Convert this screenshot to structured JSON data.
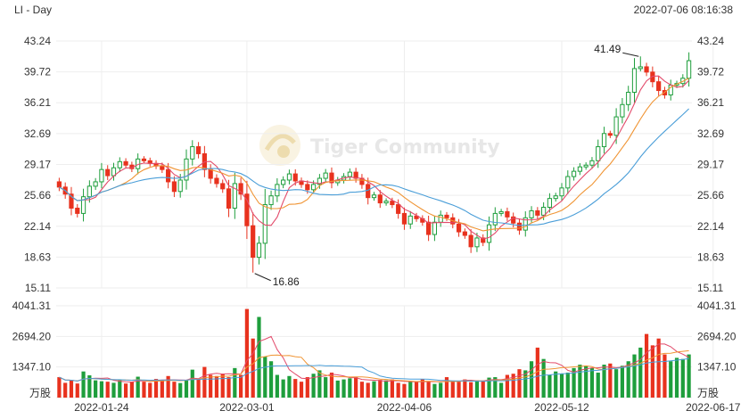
{
  "header": {
    "symbol_label": "LI - Day",
    "timestamp": "2022-07-06 08:16:38"
  },
  "watermark": {
    "text": "Tiger Community"
  },
  "colors": {
    "up": "#1e9e3c",
    "down": "#e8321e",
    "ma_short": "#e24a6a",
    "ma_mid": "#f09433",
    "ma_long": "#4a9ed8",
    "grid": "#eeeeee"
  },
  "chart_data": [
    {
      "type": "candlestick",
      "panel": "price",
      "ylim": [
        15.11,
        43.24
      ],
      "y_ticks": [
        "43.24",
        "39.72",
        "36.21",
        "32.69",
        "29.17",
        "25.66",
        "22.14",
        "18.63",
        "15.11"
      ],
      "y_tick_values": [
        43.24,
        39.72,
        36.21,
        32.69,
        29.17,
        25.66,
        22.14,
        18.63,
        15.11
      ],
      "x_labels": [
        {
          "label": "2022-01-24",
          "index": 7
        },
        {
          "label": "2022-03-01",
          "index": 31
        },
        {
          "label": "2022-04-06",
          "index": 57
        },
        {
          "label": "2022-05-12",
          "index": 83
        },
        {
          "label": "2022-06-17",
          "index": 108
        }
      ],
      "closes": [
        26.6,
        25.8,
        24.2,
        23.6,
        25.5,
        26.7,
        27.2,
        28.6,
        27.9,
        28.8,
        29.5,
        29.1,
        28.7,
        29.8,
        29.6,
        29.3,
        29.0,
        28.6,
        27.2,
        26.1,
        27.4,
        29.8,
        31.2,
        30.4,
        28.6,
        27.6,
        27.0,
        26.4,
        24.2,
        27.0,
        25.8,
        22.2,
        18.6,
        20.2,
        24.6,
        25.6,
        26.9,
        27.4,
        28.1,
        27.3,
        26.9,
        26.3,
        26.9,
        27.6,
        28.2,
        27.1,
        27.4,
        27.8,
        28.3,
        27.6,
        26.9,
        25.4,
        25.7,
        24.8,
        25.0,
        24.6,
        23.6,
        22.4,
        23.3,
        23.0,
        22.6,
        21.2,
        22.6,
        23.4,
        23.1,
        22.4,
        21.5,
        21.1,
        19.8,
        20.8,
        20.3,
        22.3,
        23.6,
        23.8,
        23.2,
        22.5,
        21.7,
        23.1,
        23.9,
        23.4,
        24.3,
        25.3,
        25.6,
        26.5,
        27.8,
        28.4,
        28.9,
        29.1,
        29.6,
        31.2,
        32.7,
        32.5,
        34.6,
        36.0,
        37.4,
        40.1,
        40.3,
        39.7,
        38.6,
        37.6,
        37.1,
        38.2,
        38.4,
        39.0,
        41.0
      ],
      "low_labels": [
        {
          "text": "16.86",
          "value": 16.86,
          "index": 32
        }
      ],
      "high_labels": [
        {
          "text": "41.49",
          "value": 41.49,
          "index": 96
        }
      ],
      "series": [
        {
          "name": "",
          "kind": "ma_short",
          "period": 5
        },
        {
          "name": "",
          "kind": "ma_mid",
          "period": 10
        },
        {
          "name": "",
          "kind": "ma_long",
          "period": 20
        }
      ]
    },
    {
      "type": "bar",
      "panel": "volume",
      "ylim": [
        0,
        4041.31
      ],
      "y_ticks": [
        "4041.31",
        "2694.20",
        "1347.10",
        "万股"
      ],
      "y_tick_values": [
        4041.31,
        2694.2,
        1347.1,
        0
      ],
      "unit": "万股",
      "values": [
        900,
        650,
        750,
        620,
        1150,
        980,
        760,
        720,
        700,
        650,
        780,
        620,
        690,
        920,
        700,
        650,
        820,
        780,
        950,
        700,
        640,
        780,
        1230,
        820,
        1350,
        1000,
        950,
        1050,
        900,
        1300,
        1000,
        3900,
        2600,
        3550,
        1800,
        1600,
        1000,
        800,
        950,
        820,
        700,
        900,
        1050,
        1200,
        900,
        1100,
        750,
        800,
        850,
        900,
        700,
        650,
        720,
        780,
        760,
        800,
        650,
        600,
        700,
        720,
        800,
        700,
        600,
        650,
        900,
        750,
        700,
        800,
        680,
        760,
        750,
        880,
        900,
        650,
        1000,
        1050,
        1250,
        1200,
        1600,
        2200,
        1700,
        1000,
        1150,
        1050,
        1100,
        1300,
        1450,
        1400,
        1300,
        1100,
        1450,
        1500,
        1250,
        1400,
        1600,
        1900,
        2200,
        2800,
        2300,
        2600,
        1900,
        1600,
        1750,
        1700,
        1900
      ]
    }
  ]
}
